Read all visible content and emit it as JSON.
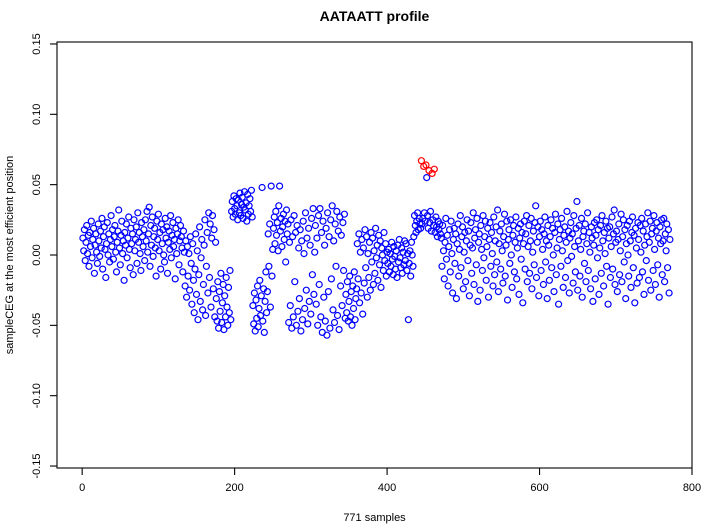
{
  "title": "AATAATT profile",
  "x_axis": {
    "label": "771 samples",
    "ticks": [
      0,
      200,
      400,
      600,
      800
    ]
  },
  "y_axis": {
    "label": "sampleCEG at the most efficient position",
    "ticks": [
      -0.15,
      -0.1,
      -0.05,
      0.0,
      0.05,
      0.1,
      0.15
    ],
    "tick_labels": [
      "-0.15",
      "-0.10",
      "-0.05",
      "0.00",
      "0.05",
      "0.10",
      "0.15"
    ]
  },
  "colors": {
    "point": "#0000FF",
    "highlight": "#FF0000",
    "axis": "#000000",
    "background": "#FFFFFF"
  },
  "chart_data": {
    "type": "scatter",
    "title": "AATAATT profile",
    "xlabel": "771 samples",
    "ylabel": "sampleCEG at the most efficient position",
    "n_points": 771,
    "marker": "open-circle",
    "grid": false,
    "legend": "none",
    "xlim": [
      -33,
      800
    ],
    "ylim": [
      -0.1514,
      0.1514
    ],
    "x_start": 1,
    "red_indices": [
      445,
      448,
      451,
      455,
      459,
      462
    ],
    "y": [
      0.012,
      0.003,
      0.018,
      -0.004,
      0.009,
      0.021,
      0.001,
      0.014,
      -0.008,
      0.016,
      0.006,
      0.024,
      -0.002,
      0.011,
      0.019,
      -0.013,
      0.007,
      0.015,
      0.002,
      -0.006,
      0.022,
      0.01,
      -0.001,
      0.017,
      0.005,
      0.026,
      -0.01,
      0.013,
      0.02,
      0.004,
      -0.016,
      0.008,
      0.023,
      0.0,
      0.015,
      -0.005,
      0.011,
      0.028,
      0.006,
      0.018,
      -0.003,
      0.013,
      0.021,
      0.002,
      -0.012,
      0.009,
      0.017,
      0.032,
      0.005,
      -0.007,
      0.014,
      0.024,
      0.001,
      0.01,
      -0.018,
      0.016,
      0.007,
      0.022,
      -0.002,
      0.012,
      0.027,
      0.004,
      -0.009,
      0.019,
      0.008,
      0.015,
      -0.014,
      0.025,
      0.003,
      0.011,
      0.02,
      -0.006,
      0.03,
      0.009,
      0.016,
      0.001,
      -0.011,
      0.023,
      0.013,
      0.006,
      0.018,
      -0.004,
      0.025,
      0.01,
      0.031,
      0.002,
      0.015,
      0.034,
      -0.008,
      0.021,
      0.007,
      0.027,
      -0.001,
      0.013,
      0.019,
      0.005,
      -0.015,
      0.024,
      0.011,
      0.029,
      0.003,
      0.016,
      -0.01,
      0.022,
      0.008,
      0.018,
      0.0,
      -0.005,
      0.026,
      0.012,
      0.02,
      -0.013,
      0.009,
      0.017,
      0.004,
      0.028,
      -0.002,
      0.014,
      0.023,
      0.006,
      0.011,
      -0.017,
      0.019,
      0.001,
      0.015,
      0.025,
      -0.007,
      0.01,
      0.021,
      0.013,
      0.005,
      -0.012,
      0.017,
      0.002,
      -0.022,
      0.01,
      -0.03,
      0.006,
      -0.015,
      0.001,
      -0.025,
      0.013,
      -0.006,
      -0.035,
      0.008,
      -0.018,
      -0.041,
      -0.01,
      0.015,
      -0.028,
      0.003,
      -0.046,
      -0.014,
      0.02,
      -0.033,
      -0.002,
      0.011,
      -0.039,
      -0.021,
      0.007,
      0.025,
      -0.043,
      -0.008,
      0.016,
      -0.027,
      0.03,
      -0.016,
      0.022,
      -0.037,
      0.012,
      0.028,
      -0.024,
      0.018,
      -0.044,
      0.009,
      -0.031,
      -0.047,
      -0.019,
      -0.052,
      -0.026,
      -0.04,
      -0.013,
      -0.048,
      -0.034,
      -0.021,
      -0.053,
      -0.029,
      -0.044,
      -0.016,
      -0.037,
      -0.05,
      -0.023,
      -0.041,
      -0.011,
      -0.046,
      0.031,
      0.038,
      0.027,
      0.042,
      0.033,
      0.029,
      0.04,
      0.035,
      0.025,
      0.039,
      0.03,
      0.044,
      0.028,
      0.036,
      0.041,
      0.026,
      0.034,
      0.045,
      0.032,
      0.037,
      0.024,
      0.043,
      0.029,
      0.035,
      0.04,
      0.031,
      0.046,
      0.027,
      -0.036,
      -0.049,
      -0.027,
      -0.054,
      -0.032,
      -0.045,
      -0.022,
      -0.051,
      -0.038,
      -0.018,
      -0.043,
      -0.029,
      0.048,
      -0.047,
      -0.024,
      -0.055,
      -0.033,
      -0.012,
      -0.041,
      -0.026,
      0.015,
      -0.008,
      0.022,
      -0.037,
      0.049,
      -0.015,
      0.004,
      0.019,
      0.027,
      0.008,
      0.031,
      0.014,
      0.023,
      0.003,
      0.035,
      0.049,
      0.017,
      0.026,
      0.006,
      0.02,
      0.029,
      0.011,
      0.024,
      -0.005,
      0.032,
      0.015,
      0.022,
      -0.048,
      0.009,
      -0.036,
      0.025,
      -0.052,
      0.013,
      -0.044,
      0.028,
      -0.019,
      0.016,
      -0.05,
      0.021,
      -0.04,
      0.005,
      -0.031,
      0.018,
      -0.054,
      0.01,
      -0.046,
      0.024,
      0.001,
      -0.038,
      0.03,
      -0.025,
      0.012,
      -0.049,
      0.019,
      -0.033,
      0.007,
      -0.042,
      0.026,
      -0.014,
      0.033,
      -0.028,
      0.002,
      0.021,
      -0.035,
      0.012,
      -0.05,
      0.028,
      -0.021,
      0.033,
      -0.044,
      0.016,
      -0.055,
      0.024,
      -0.03,
      0.007,
      -0.047,
      0.019,
      -0.057,
      0.03,
      -0.026,
      0.013,
      -0.052,
      0.025,
      -0.017,
      0.035,
      -0.039,
      0.01,
      -0.048,
      0.022,
      -0.008,
      0.031,
      -0.043,
      0.017,
      -0.053,
      0.027,
      -0.022,
      0.014,
      -0.036,
      0.023,
      -0.011,
      0.029,
      -0.045,
      -0.028,
      -0.041,
      -0.019,
      -0.047,
      -0.033,
      -0.015,
      -0.044,
      -0.026,
      -0.05,
      -0.022,
      -0.038,
      -0.012,
      -0.046,
      -0.031,
      -0.024,
      0.008,
      -0.017,
      0.015,
      -0.034,
      0.002,
      -0.027,
      0.011,
      -0.042,
      0.005,
      -0.02,
      0.018,
      -0.009,
      0.013,
      -0.03,
      0.001,
      -0.016,
      0.009,
      -0.025,
      0.016,
      -0.005,
      0.012,
      -0.021,
      0.003,
      -0.013,
      0.019,
      -0.002,
      0.007,
      -0.018,
      0.014,
      -0.007,
      0.01,
      -0.023,
      0.005,
      0.0,
      -0.011,
      0.016,
      -0.004,
      0.008,
      -0.015,
      0.002,
      -0.006,
      0.004,
      -0.012,
      0.001,
      -0.008,
      0.009,
      -0.003,
      -0.014,
      0.006,
      -0.001,
      -0.01,
      0.003,
      -0.016,
      0.007,
      -0.005,
      0.011,
      -0.002,
      -0.009,
      0.005,
      -0.013,
      0.002,
      -0.007,
      0.01,
      -0.004,
      0.008,
      -0.011,
      0.001,
      -0.046,
      -0.006,
      0.003,
      -0.015,
      0.009,
      0.0,
      -0.008,
      0.013,
      0.028,
      0.021,
      0.016,
      0.024,
      0.03,
      0.018,
      0.026,
      0.022,
      0.019,
      0.067,
      0.022,
      0.026,
      0.063,
      0.03,
      0.024,
      0.064,
      0.055,
      0.028,
      0.019,
      0.06,
      0.023,
      0.031,
      0.017,
      0.058,
      0.025,
      0.021,
      0.061,
      0.016,
      0.027,
      0.02,
      0.013,
      0.024,
      0.018,
      0.022,
      0.015,
      0.012,
      -0.008,
      0.021,
      0.003,
      -0.017,
      0.009,
      0.026,
      -0.003,
      0.014,
      -0.022,
      0.006,
      0.018,
      -0.012,
      0.024,
      0.001,
      -0.027,
      0.011,
      0.019,
      -0.006,
      0.015,
      -0.031,
      0.008,
      0.022,
      -0.015,
      0.004,
      0.028,
      -0.009,
      0.013,
      0.02,
      -0.024,
      0.002,
      0.016,
      -0.019,
      0.01,
      0.025,
      -0.004,
      0.017,
      -0.029,
      0.007,
      0.023,
      -0.013,
      0.005,
      0.03,
      -0.021,
      0.012,
      0.018,
      -0.007,
      0.026,
      -0.033,
      0.009,
      0.015,
      -0.025,
      0.021,
      0.004,
      -0.011,
      0.028,
      -0.002,
      0.013,
      0.024,
      -0.018,
      0.006,
      0.019,
      -0.03,
      0.011,
      0.023,
      -0.008,
      0.016,
      0.001,
      -0.022,
      0.027,
      -0.014,
      0.01,
      0.02,
      -0.005,
      0.032,
      -0.026,
      0.008,
      0.017,
      -0.01,
      0.022,
      0.003,
      -0.02,
      0.013,
      0.029,
      -0.015,
      0.007,
      0.024,
      -0.032,
      0.011,
      0.018,
      -0.006,
      0.025,
      0.0,
      -0.023,
      0.014,
      0.021,
      -0.012,
      0.009,
      0.027,
      -0.017,
      0.005,
      0.019,
      -0.028,
      0.012,
      0.022,
      -0.003,
      0.016,
      -0.034,
      0.008,
      0.024,
      -0.01,
      0.015,
      0.028,
      -0.019,
      0.006,
      0.021,
      -0.013,
      0.01,
      0.026,
      -0.024,
      0.002,
      0.017,
      -0.007,
      0.023,
      0.035,
      -0.016,
      0.009,
      0.02,
      -0.029,
      0.013,
      0.024,
      -0.011,
      0.018,
      0.004,
      -0.021,
      0.015,
      0.027,
      -0.005,
      0.01,
      -0.031,
      0.021,
      0.007,
      -0.018,
      0.013,
      0.025,
      -0.009,
      0.019,
      0.0,
      -0.026,
      0.016,
      0.029,
      -0.014,
      0.005,
      0.022,
      -0.035,
      0.011,
      0.018,
      -0.008,
      0.026,
      0.003,
      -0.023,
      0.014,
      0.02,
      -0.016,
      0.009,
      0.031,
      -0.004,
      0.017,
      -0.027,
      0.012,
      0.023,
      -0.001,
      0.015,
      -0.02,
      0.028,
      0.006,
      -0.012,
      0.019,
      0.038,
      -0.025,
      0.01,
      0.021,
      -0.015,
      0.004,
      0.026,
      -0.03,
      0.013,
      0.017,
      -0.006,
      0.022,
      -0.019,
      0.008,
      0.03,
      -0.011,
      0.016,
      0.002,
      -0.024,
      0.02,
      0.012,
      -0.033,
      0.007,
      0.023,
      -0.017,
      0.014,
      0.025,
      -0.002,
      0.018,
      -0.028,
      0.005,
      0.021,
      -0.013,
      0.028,
      0.01,
      -0.022,
      0.016,
      0.001,
      0.024,
      -0.008,
      0.019,
      -0.035,
      0.012,
      0.02,
      -0.016,
      0.006,
      0.027,
      -0.01,
      0.015,
      0.032,
      -0.021,
      0.009,
      0.017,
      -0.026,
      0.011,
      0.022,
      -0.014,
      0.003,
      0.029,
      -0.019,
      0.013,
      0.025,
      -0.005,
      0.018,
      -0.031,
      0.008,
      0.021,
      0.0,
      -0.015,
      0.024,
      0.01,
      -0.023,
      0.016,
      0.027,
      -0.009,
      0.014,
      -0.034,
      0.019,
      0.005,
      -0.02,
      0.023,
      0.011,
      -0.016,
      0.021,
      0.002,
      0.026,
      -0.012,
      0.017,
      -0.028,
      0.007,
      0.022,
      -0.004,
      0.013,
      0.03,
      -0.018,
      0.009,
      0.024,
      -0.025,
      0.015,
      0.019,
      -0.011,
      0.028,
      0.004,
      -0.021,
      0.017,
      0.023,
      -0.007,
      0.012,
      -0.03,
      0.02,
      0.008,
      0.025,
      -0.014,
      0.01,
      0.026,
      -0.019,
      0.015,
      0.003,
      0.022,
      -0.009,
      0.018,
      -0.027,
      0.011
    ]
  }
}
